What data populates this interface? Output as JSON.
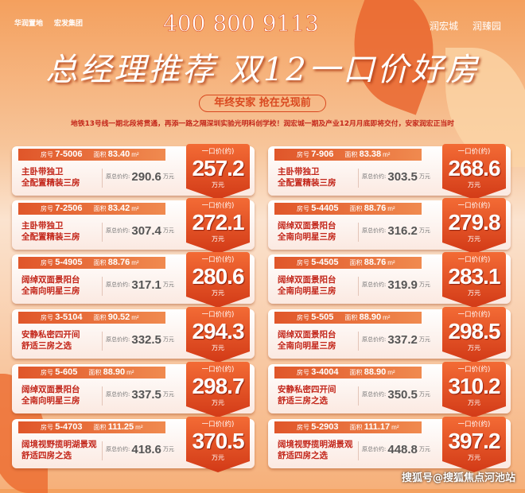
{
  "header": {
    "logos_left": [
      "华润置地",
      "宏发集团"
    ],
    "logos_right": [
      "润宏城",
      "润臻园"
    ],
    "title": "总经理推荐 双12一口价好房",
    "slogan": "年终安家 抢在兑现前",
    "subtitle": "地铁13号线一期北段将贯通，再添一路之隔深圳实验光明科创学校！润宏城一期及产业12月月底即将交付，安家润宏正当时"
  },
  "labels": {
    "room": "房号",
    "area": "面积",
    "unit_area": "m²",
    "orig": "原总价约:",
    "wan": "万元",
    "deal": "一口价(约)"
  },
  "cards_left": [
    {
      "room": "7-5006",
      "area": "83.40",
      "d1": "主卧带独卫",
      "d2": "全配置精装三房",
      "orig": "290.6",
      "price": "257.2"
    },
    {
      "room": "7-2506",
      "area": "83.42",
      "d1": "主卧带独卫",
      "d2": "全配置精装三房",
      "orig": "307.4",
      "price": "272.1"
    },
    {
      "room": "5-4905",
      "area": "88.76",
      "d1": "阔绰双面景阳台",
      "d2": "全南向明星三房",
      "orig": "317.1",
      "price": "280.6"
    },
    {
      "room": "3-5104",
      "area": "90.52",
      "d1": "安静私密四开间",
      "d2": "舒适三房之选",
      "orig": "332.5",
      "price": "294.3"
    },
    {
      "room": "5-605",
      "area": "88.90",
      "d1": "阔绰双面景阳台",
      "d2": "全南向明星三房",
      "orig": "337.5",
      "price": "298.7"
    },
    {
      "room": "5-4703",
      "area": "111.25",
      "d1": "阔境视野揽明湖景观",
      "d2": "舒适四房之选",
      "orig": "418.6",
      "price": "370.5"
    }
  ],
  "cards_right": [
    {
      "room": "7-906",
      "area": "83.38",
      "d1": "主卧带独卫",
      "d2": "全配置精装三房",
      "orig": "303.5",
      "price": "268.6"
    },
    {
      "room": "5-4405",
      "area": "88.76",
      "d1": "阔绰双面景阳台",
      "d2": "全南向明星三房",
      "orig": "316.2",
      "price": "279.8"
    },
    {
      "room": "5-4505",
      "area": "88.76",
      "d1": "阔绰双面景阳台",
      "d2": "全南向明星三房",
      "orig": "319.9",
      "price": "283.1"
    },
    {
      "room": "5-505",
      "area": "88.90",
      "d1": "阔绰双面景阳台",
      "d2": "全南向明星三房",
      "orig": "337.2",
      "price": "298.5"
    },
    {
      "room": "3-4004",
      "area": "88.90",
      "d1": "安静私密四开间",
      "d2": "舒适三房之选",
      "orig": "350.5",
      "price": "310.2"
    },
    {
      "room": "5-2903",
      "area": "111.17",
      "d1": "阔境视野揽明湖景观",
      "d2": "舒适四房之选",
      "orig": "448.8",
      "price": "397.2"
    }
  ],
  "watermark": "400 800 9113",
  "footer": "搜狐号@搜狐焦点河池站"
}
